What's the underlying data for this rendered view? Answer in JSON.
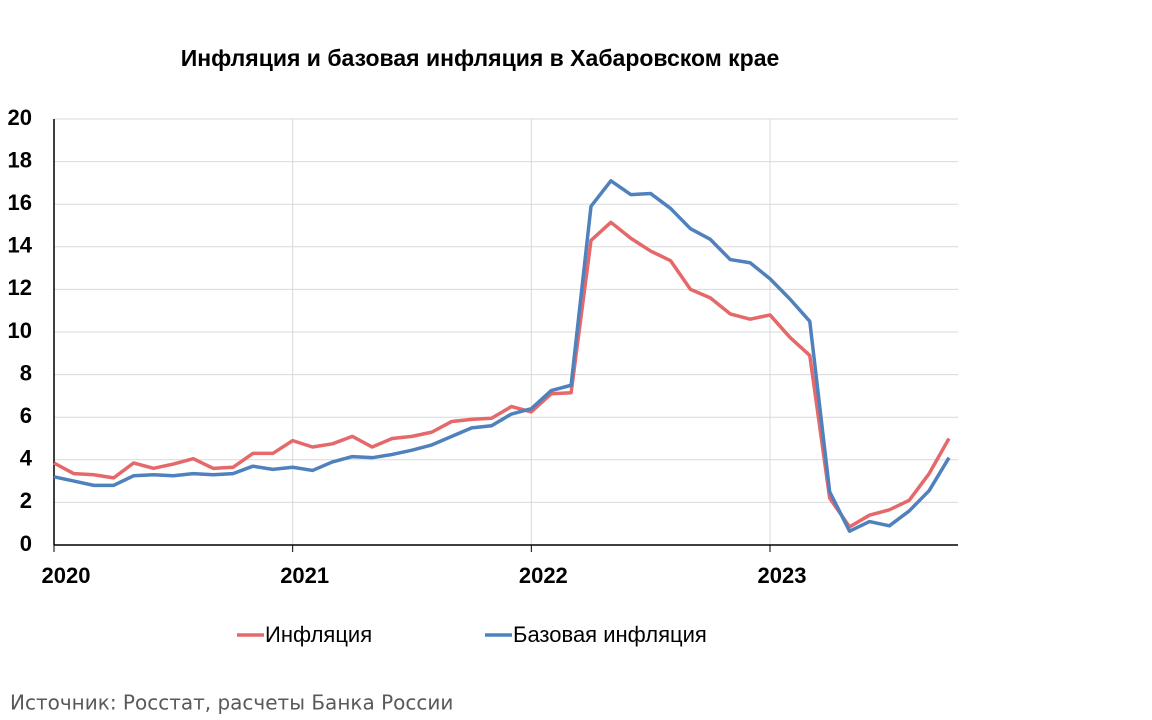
{
  "chart_data": {
    "type": "line",
    "title": "Инфляция и базовая инфляция в Хабаровском крае",
    "source": "Источник: Росстат, расчеты Банка России",
    "categories": [
      "2020",
      null,
      null,
      null,
      null,
      null,
      null,
      null,
      null,
      null,
      null,
      null,
      "2021",
      null,
      null,
      null,
      null,
      null,
      null,
      null,
      null,
      null,
      null,
      null,
      "2022",
      null,
      null,
      null,
      null,
      null,
      null,
      null,
      null,
      null,
      null,
      null,
      "2023",
      null,
      null,
      null,
      null,
      null,
      null,
      null,
      null,
      null
    ],
    "series": [
      {
        "name": "Инфляция",
        "color": "#e5686a",
        "values": [
          3.85,
          3.35,
          3.3,
          3.15,
          3.85,
          3.6,
          3.8,
          4.05,
          3.6,
          3.65,
          4.3,
          4.3,
          4.9,
          4.6,
          4.75,
          5.1,
          4.6,
          5.0,
          5.1,
          5.3,
          5.8,
          5.9,
          5.95,
          6.5,
          6.25,
          7.1,
          7.15,
          14.3,
          15.15,
          14.4,
          13.8,
          13.35,
          12.0,
          11.6,
          10.85,
          10.6,
          10.8,
          9.75,
          8.9,
          2.2,
          0.85,
          1.4,
          1.65,
          2.1,
          3.35,
          5.0
        ]
      },
      {
        "name": "Базовая инфляция",
        "color": "#4f81bd",
        "values": [
          3.2,
          3.0,
          2.8,
          2.8,
          3.25,
          3.3,
          3.25,
          3.35,
          3.3,
          3.35,
          3.7,
          3.55,
          3.65,
          3.5,
          3.9,
          4.15,
          4.1,
          4.25,
          4.45,
          4.7,
          5.1,
          5.5,
          5.6,
          6.15,
          6.4,
          7.25,
          7.5,
          15.9,
          17.1,
          16.45,
          16.5,
          15.8,
          14.85,
          14.35,
          13.4,
          13.25,
          12.5,
          11.55,
          10.5,
          2.5,
          0.65,
          1.1,
          0.9,
          1.6,
          2.55,
          4.1
        ]
      }
    ],
    "ylim": [
      0,
      20
    ],
    "yticks": [
      0,
      2,
      4,
      6,
      8,
      10,
      12,
      14,
      16,
      18,
      20
    ],
    "grid": true
  }
}
